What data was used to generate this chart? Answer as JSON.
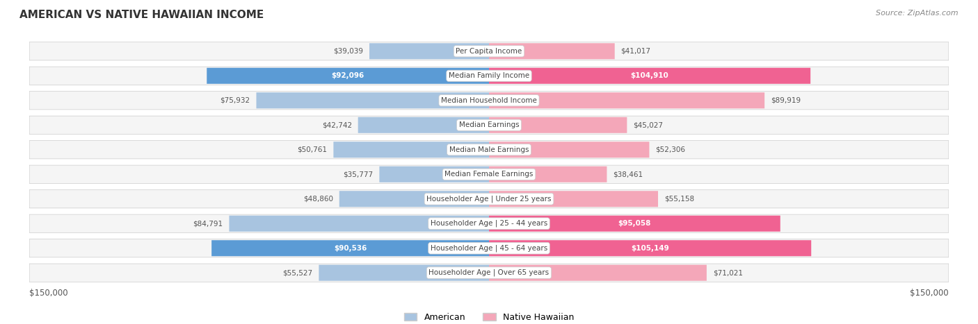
{
  "title": "AMERICAN VS NATIVE HAWAIIAN INCOME",
  "source": "Source: ZipAtlas.com",
  "categories": [
    "Per Capita Income",
    "Median Family Income",
    "Median Household Income",
    "Median Earnings",
    "Median Male Earnings",
    "Median Female Earnings",
    "Householder Age | Under 25 years",
    "Householder Age | 25 - 44 years",
    "Householder Age | 45 - 64 years",
    "Householder Age | Over 65 years"
  ],
  "american_values": [
    39039,
    92096,
    75932,
    42742,
    50761,
    35777,
    48860,
    84791,
    90536,
    55527
  ],
  "hawaiian_values": [
    41017,
    104910,
    89919,
    45027,
    52306,
    38461,
    55158,
    95058,
    105149,
    71021
  ],
  "american_labels": [
    "$39,039",
    "$92,096",
    "$75,932",
    "$42,742",
    "$50,761",
    "$35,777",
    "$48,860",
    "$84,791",
    "$90,536",
    "$55,527"
  ],
  "hawaiian_labels": [
    "$41,017",
    "$104,910",
    "$89,919",
    "$45,027",
    "$52,306",
    "$38,461",
    "$55,158",
    "$95,058",
    "$105,149",
    "$71,021"
  ],
  "max_value": 150000,
  "american_bar_color_light": "#a8c4e0",
  "american_bar_color_dark": "#5b9bd5",
  "hawaiian_bar_color_light": "#f4a7b9",
  "hawaiian_bar_color_dark": "#f06292",
  "background_color": "#ffffff",
  "row_bg_color": "#f0f0f0",
  "label_inside_threshold": 70000,
  "legend_american": "American",
  "legend_hawaiian": "Native Hawaiian"
}
